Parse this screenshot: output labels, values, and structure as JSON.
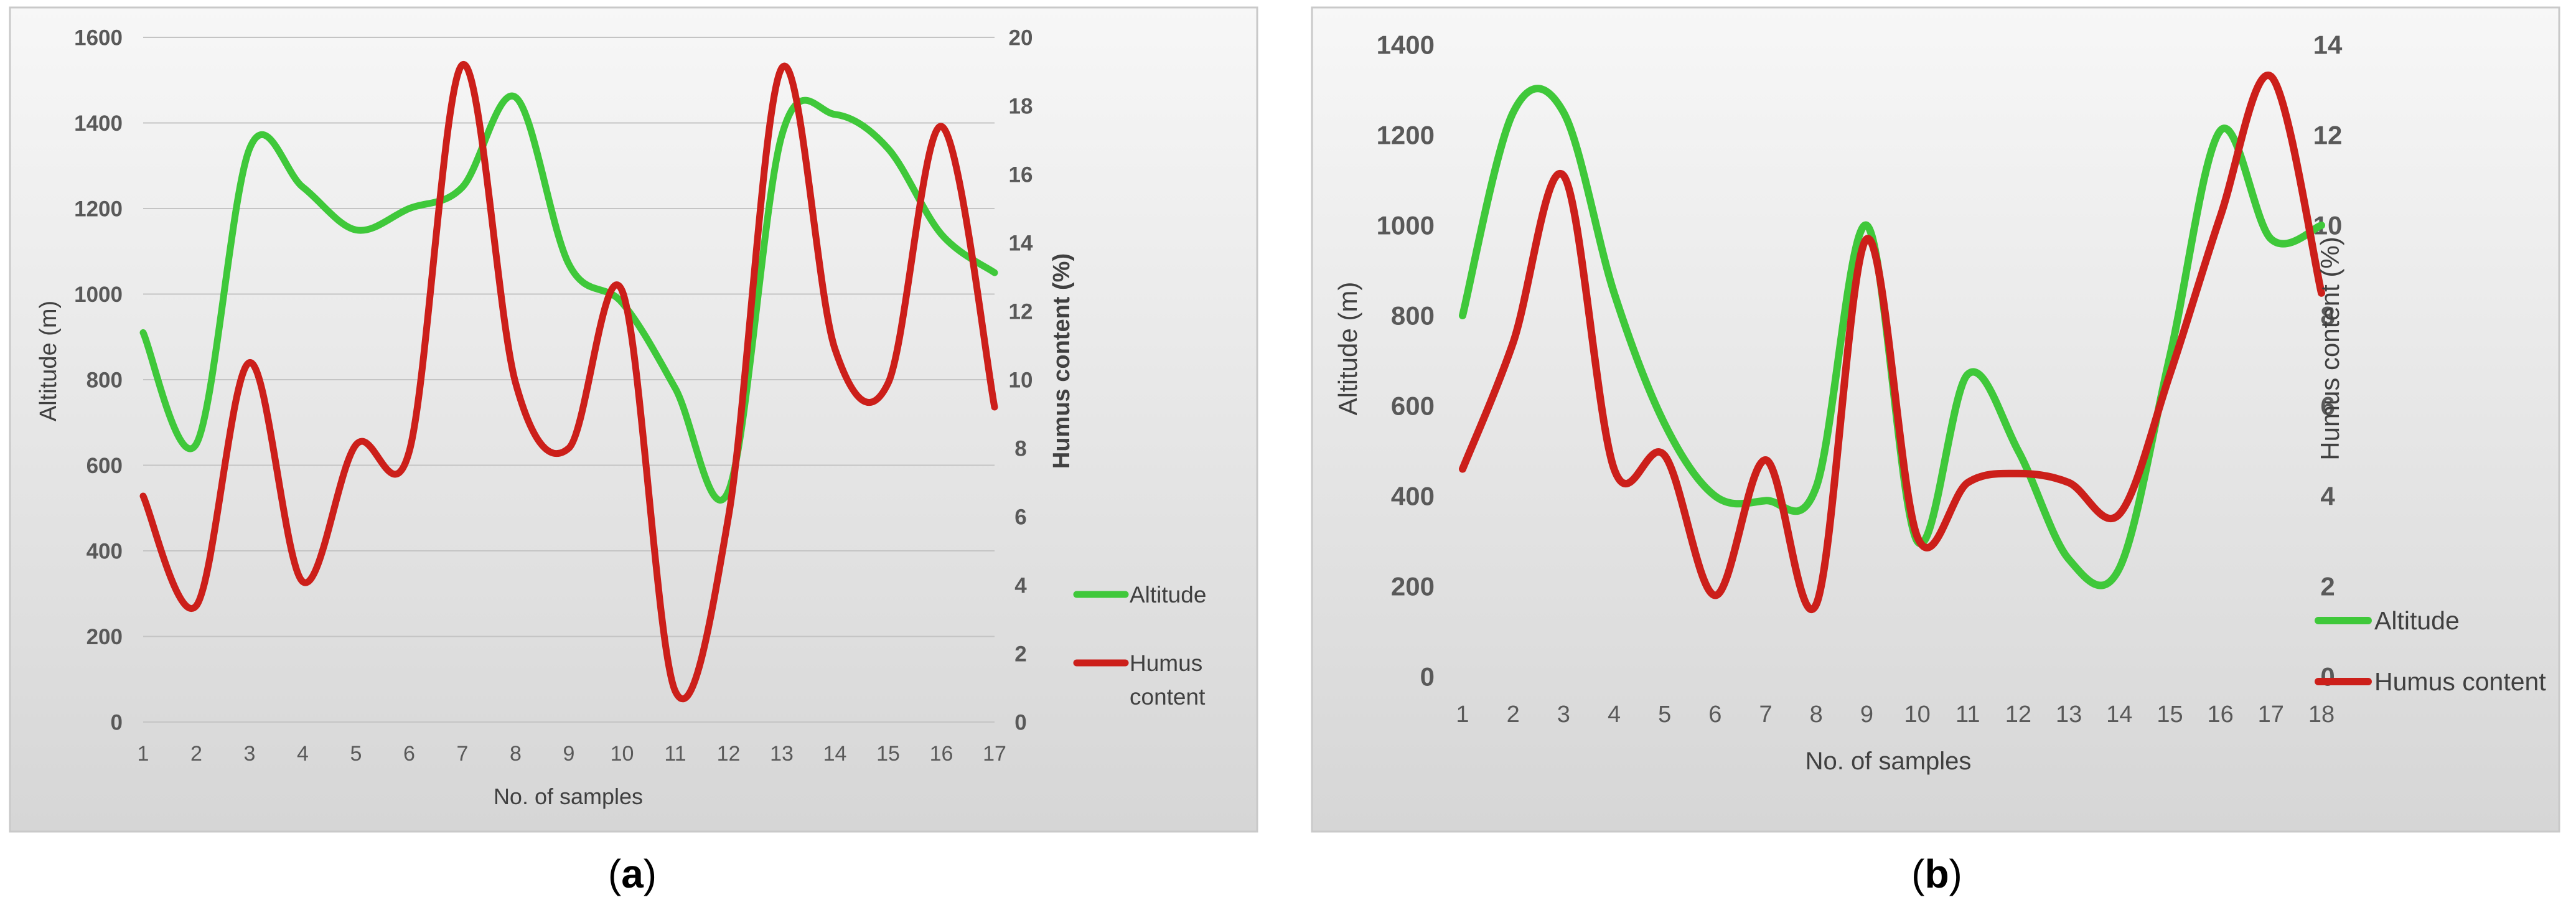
{
  "chart_data": [
    {
      "type": "line",
      "panel_label": "a",
      "categories": [
        "1",
        "2",
        "3",
        "4",
        "5",
        "6",
        "7",
        "8",
        "9",
        "10",
        "11",
        "12",
        "13",
        "14",
        "15",
        "16",
        "17"
      ],
      "xlabel": "No. of samples",
      "ylabel_left": "Altitude (m)",
      "ylabel_right": "Humus content (%)",
      "ylim_left": [
        0,
        1600
      ],
      "ylim_right": [
        0,
        20
      ],
      "yticks_left": [
        "0",
        "200",
        "400",
        "600",
        "800",
        "1000",
        "1200",
        "1400",
        "1600"
      ],
      "yticks_right": [
        "0",
        "2",
        "4",
        "6",
        "8",
        "10",
        "12",
        "14",
        "16",
        "18",
        "20"
      ],
      "grid": true,
      "legend": "right",
      "series": [
        {
          "name": "Altitude",
          "axis": "left",
          "color": "#3fc83a",
          "values": [
            910,
            650,
            1340,
            1250,
            1150,
            1200,
            1250,
            1460,
            1070,
            980,
            780,
            540,
            1370,
            1420,
            1340,
            1140,
            1050
          ]
        },
        {
          "name": "Humus content",
          "axis": "right",
          "color": "#cc1f1a",
          "values": [
            6.6,
            3.4,
            10.5,
            4.1,
            8.1,
            7.9,
            19.2,
            9.9,
            8.0,
            12.6,
            0.9,
            6.0,
            19.1,
            10.9,
            9.9,
            17.4,
            9.2
          ]
        }
      ]
    },
    {
      "type": "line",
      "panel_label": "b",
      "categories": [
        "1",
        "2",
        "3",
        "4",
        "5",
        "6",
        "7",
        "8",
        "9",
        "10",
        "11",
        "12",
        "13",
        "14",
        "15",
        "16",
        "17",
        "18"
      ],
      "xlabel": "No. of samples",
      "ylabel_left": "Altitude (m)",
      "ylabel_right": "Humus content (%)",
      "ylim_left": [
        0,
        1400
      ],
      "ylim_right": [
        0,
        14
      ],
      "yticks_left": [
        "0",
        "200",
        "400",
        "600",
        "800",
        "1000",
        "1200",
        "1400"
      ],
      "yticks_right": [
        "0",
        "2",
        "4",
        "6",
        "8",
        "10",
        "12",
        "14"
      ],
      "grid": false,
      "legend": "bottom-right",
      "series": [
        {
          "name": "Altitude",
          "axis": "left",
          "color": "#3fc83a",
          "values": [
            800,
            1250,
            1250,
            850,
            560,
            400,
            390,
            420,
            1000,
            300,
            670,
            500,
            260,
            240,
            710,
            1210,
            970,
            1000
          ]
        },
        {
          "name": "Humus content",
          "axis": "right",
          "color": "#cc1f1a",
          "values": [
            4.6,
            7.4,
            11.1,
            4.6,
            4.9,
            1.8,
            4.8,
            1.6,
            9.7,
            3.1,
            4.3,
            4.5,
            4.3,
            3.6,
            6.7,
            10.2,
            13.3,
            8.5
          ]
        }
      ]
    }
  ]
}
